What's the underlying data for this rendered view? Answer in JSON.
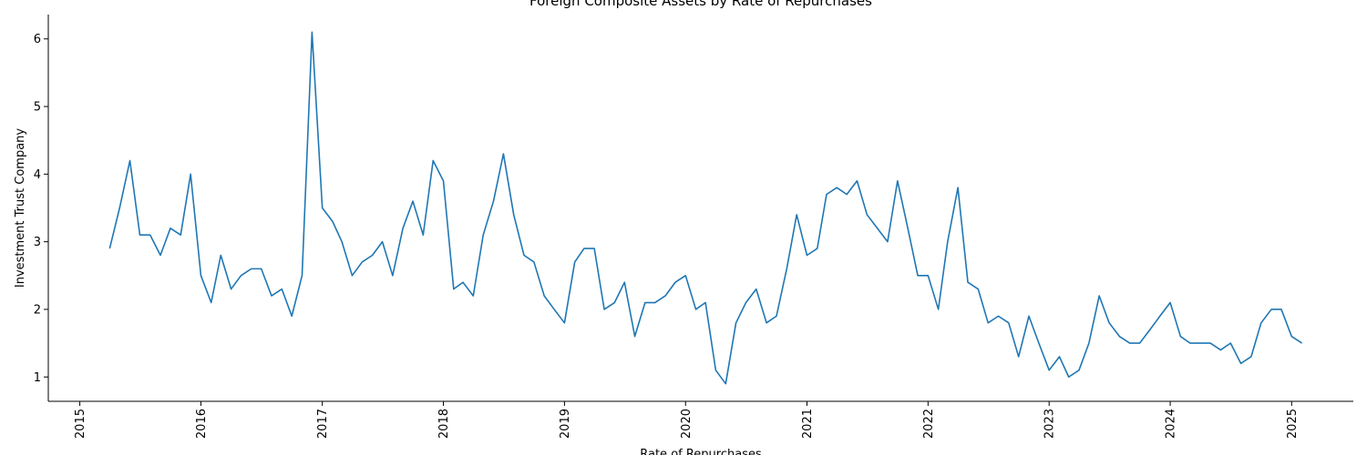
{
  "chart_data": {
    "type": "line",
    "title": "Foreign Composite Assets by Rate of Repurchases",
    "xlabel": "Rate of Repurchases",
    "ylabel": "Investment Trust Company",
    "x_ticks": [
      "2015",
      "2016",
      "2017",
      "2018",
      "2019",
      "2020",
      "2021",
      "2022",
      "2023",
      "2024",
      "2025"
    ],
    "y_ticks": [
      1,
      2,
      3,
      4,
      5,
      6
    ],
    "xlim": [
      "2014-09-28",
      "2025-07-06"
    ],
    "ylim": [
      0.64,
      6.36
    ],
    "grid": false,
    "line_color": "#1f77b4",
    "series": [
      {
        "x": [
          "2015-04",
          "2015-05",
          "2015-06",
          "2015-07",
          "2015-08",
          "2015-09",
          "2015-10",
          "2015-11",
          "2015-12",
          "2016-01",
          "2016-02",
          "2016-03",
          "2016-04",
          "2016-05",
          "2016-06",
          "2016-07",
          "2016-08",
          "2016-09",
          "2016-10",
          "2016-11",
          "2016-12",
          "2017-01",
          "2017-02",
          "2017-03",
          "2017-04",
          "2017-05",
          "2017-06",
          "2017-07",
          "2017-08",
          "2017-09",
          "2017-10",
          "2017-11",
          "2017-12",
          "2018-01",
          "2018-02",
          "2018-03",
          "2018-04",
          "2018-05",
          "2018-06",
          "2018-07",
          "2018-08",
          "2018-09",
          "2018-10",
          "2018-11",
          "2018-12",
          "2019-01",
          "2019-02",
          "2019-03",
          "2019-04",
          "2019-05",
          "2019-06",
          "2019-07",
          "2019-08",
          "2019-09",
          "2019-10",
          "2019-11",
          "2019-12",
          "2020-01",
          "2020-02",
          "2020-03",
          "2020-04",
          "2020-05",
          "2020-06",
          "2020-07",
          "2020-08",
          "2020-09",
          "2020-10",
          "2020-11",
          "2020-12",
          "2021-01",
          "2021-02",
          "2021-03",
          "2021-04",
          "2021-05",
          "2021-06",
          "2021-07",
          "2021-08",
          "2021-09",
          "2021-10",
          "2021-11",
          "2021-12",
          "2022-01",
          "2022-02",
          "2022-03",
          "2022-04",
          "2022-05",
          "2022-06",
          "2022-07",
          "2022-08",
          "2022-09",
          "2022-10",
          "2022-11",
          "2022-12",
          "2023-01",
          "2023-02",
          "2023-03",
          "2023-04",
          "2023-05",
          "2023-06",
          "2023-07",
          "2023-08",
          "2023-09",
          "2023-10",
          "2023-11",
          "2023-12",
          "2024-01",
          "2024-02",
          "2024-03",
          "2024-04",
          "2024-05",
          "2024-06",
          "2024-07",
          "2024-08",
          "2024-09",
          "2024-10",
          "2024-11",
          "2024-12",
          "2025-01",
          "2025-02"
        ],
        "values": [
          2.9,
          3.5,
          4.2,
          3.1,
          3.1,
          2.8,
          3.2,
          3.1,
          4.0,
          2.5,
          2.1,
          2.8,
          2.3,
          2.5,
          2.6,
          2.6,
          2.2,
          2.3,
          1.9,
          2.5,
          6.1,
          3.5,
          3.3,
          3.0,
          2.5,
          2.7,
          2.8,
          3.0,
          2.5,
          3.2,
          3.6,
          3.1,
          4.2,
          3.9,
          2.3,
          2.4,
          2.2,
          3.1,
          3.6,
          4.3,
          3.4,
          2.8,
          2.7,
          2.2,
          2.0,
          1.8,
          2.7,
          2.9,
          2.9,
          2.0,
          2.1,
          2.4,
          1.6,
          2.1,
          2.1,
          2.2,
          2.4,
          2.5,
          2.0,
          2.1,
          1.1,
          0.9,
          1.8,
          2.1,
          2.3,
          1.8,
          1.9,
          2.6,
          3.4,
          2.8,
          2.9,
          3.7,
          3.8,
          3.7,
          3.9,
          3.4,
          3.2,
          3.0,
          3.9,
          3.2,
          2.5,
          2.5,
          2.0,
          3.0,
          3.8,
          2.4,
          2.3,
          1.8,
          1.9,
          1.8,
          1.3,
          1.9,
          1.5,
          1.1,
          1.3,
          1.0,
          1.1,
          1.5,
          2.2,
          1.8,
          1.6,
          1.5,
          1.5,
          1.7,
          1.9,
          2.1,
          1.6,
          1.5,
          1.5,
          1.5,
          1.4,
          1.5,
          1.2,
          1.3,
          1.8,
          2.0,
          2.0,
          1.6,
          1.5
        ]
      }
    ]
  }
}
